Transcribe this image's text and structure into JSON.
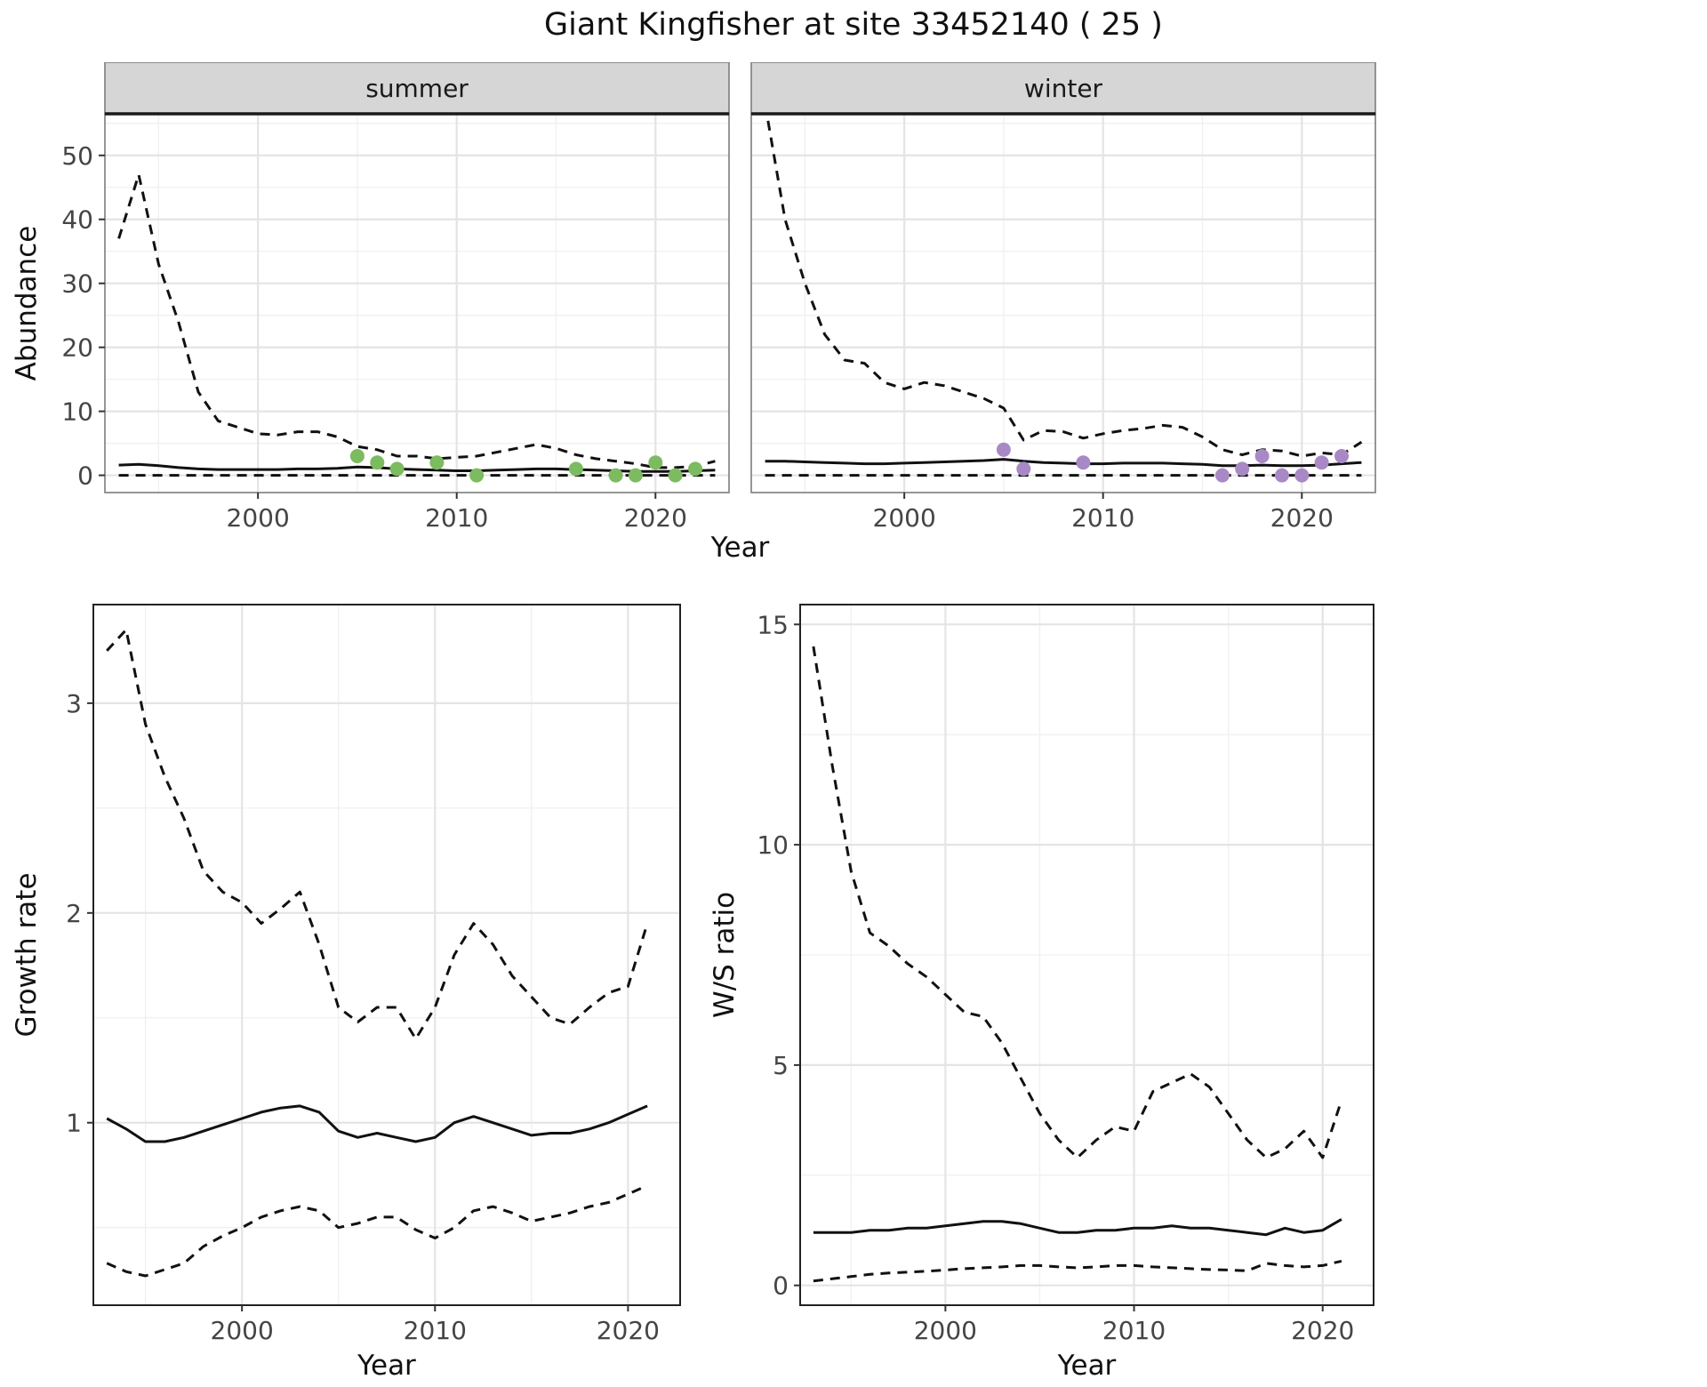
{
  "figure_title": "Giant Kingfisher at site 33452140 ( 25 )",
  "shared_x_axis_label": "Year",
  "colors": {
    "summer_points": "#7CBB5F",
    "winter_points": "#A989C5",
    "line": "#111111",
    "strip_background": "#d6d6d6"
  },
  "chart_data": [
    {
      "id": "abundance_summer",
      "type": "line",
      "facet_label": "summer",
      "ylabel": "Abundance",
      "xlabel": null,
      "xlim": [
        1992.3,
        2023.7
      ],
      "ylim": [
        -2.7,
        56.5
      ],
      "x_ticks": [
        2000,
        2010,
        2020
      ],
      "x_minor_ticks": [
        1995,
        2005,
        2015
      ],
      "y_ticks": [
        0,
        10,
        20,
        30,
        40,
        50
      ],
      "y_minor_ticks": [
        5,
        15,
        25,
        35,
        45,
        55
      ],
      "x": [
        1993,
        1994,
        1995,
        1996,
        1997,
        1998,
        1999,
        2000,
        2001,
        2002,
        2003,
        2004,
        2005,
        2006,
        2007,
        2008,
        2009,
        2010,
        2011,
        2012,
        2013,
        2014,
        2015,
        2016,
        2017,
        2018,
        2019,
        2020,
        2021,
        2022,
        2023
      ],
      "series": [
        {
          "name": "upper_ci",
          "style": "dashed",
          "values": [
            37,
            47,
            33,
            24,
            13,
            8.5,
            7.5,
            6.5,
            6.3,
            6.8,
            6.8,
            6,
            4.5,
            4,
            3,
            3,
            2.6,
            2.8,
            3,
            3.6,
            4.2,
            4.8,
            4.2,
            3.2,
            2.6,
            2.2,
            1.8,
            1.2,
            1.2,
            1.4,
            2.2
          ]
        },
        {
          "name": "median",
          "style": "solid",
          "values": [
            1.6,
            1.7,
            1.5,
            1.2,
            1,
            0.9,
            0.9,
            0.9,
            0.9,
            1,
            1,
            1.1,
            1.3,
            1.2,
            1,
            0.9,
            0.8,
            0.7,
            0.7,
            0.8,
            0.9,
            1,
            1,
            0.9,
            0.8,
            0.7,
            0.6,
            0.6,
            0.6,
            0.7,
            0.8
          ]
        },
        {
          "name": "lower_ci",
          "style": "dashed",
          "values": [
            0,
            0,
            0,
            0,
            0,
            0,
            0,
            0,
            0,
            0,
            0,
            0,
            0,
            0,
            0,
            0,
            0,
            0,
            0,
            0,
            0,
            0,
            0,
            0,
            0,
            0,
            0,
            0,
            0,
            0,
            0
          ]
        }
      ],
      "points": {
        "name": "observed_summer_counts",
        "color": "#7CBB5F",
        "x": [
          2005,
          2006,
          2007,
          2009,
          2011,
          2016,
          2018,
          2019,
          2020,
          2021,
          2022
        ],
        "y": [
          3,
          2,
          1,
          2,
          0,
          1,
          0,
          0,
          2,
          0,
          1
        ]
      }
    },
    {
      "id": "abundance_winter",
      "type": "line",
      "facet_label": "winter",
      "ylabel": null,
      "xlabel": null,
      "xlim": [
        1992.3,
        2023.7
      ],
      "ylim": [
        -2.7,
        56.5
      ],
      "x_ticks": [
        2000,
        2010,
        2020
      ],
      "x_minor_ticks": [
        1995,
        2005,
        2015
      ],
      "y_ticks": [
        0,
        10,
        20,
        30,
        40,
        50
      ],
      "y_minor_ticks": [
        5,
        15,
        25,
        35,
        45,
        55
      ],
      "x": [
        1993,
        1994,
        1995,
        1996,
        1997,
        1998,
        1999,
        2000,
        2001,
        2002,
        2003,
        2004,
        2005,
        2006,
        2007,
        2008,
        2009,
        2010,
        2011,
        2012,
        2013,
        2014,
        2015,
        2016,
        2017,
        2018,
        2019,
        2020,
        2021,
        2022,
        2023
      ],
      "series": [
        {
          "name": "upper_ci",
          "style": "dashed",
          "values": [
            58,
            40,
            30,
            22,
            18,
            17.5,
            14.5,
            13.5,
            14.5,
            14,
            13,
            12,
            10.5,
            5.5,
            7,
            6.8,
            5.8,
            6.5,
            7,
            7.3,
            7.8,
            7.5,
            6,
            4,
            3.2,
            4,
            3.8,
            3,
            3.5,
            3.2,
            5.2
          ]
        },
        {
          "name": "median",
          "style": "solid",
          "values": [
            2.2,
            2.2,
            2.1,
            2,
            1.9,
            1.8,
            1.8,
            1.9,
            2,
            2.1,
            2.2,
            2.3,
            2.5,
            2.2,
            2,
            1.9,
            1.8,
            1.8,
            1.9,
            1.9,
            1.9,
            1.8,
            1.7,
            1.5,
            1.5,
            1.6,
            1.5,
            1.5,
            1.6,
            1.8,
            2
          ]
        },
        {
          "name": "lower_ci",
          "style": "dashed",
          "values": [
            0,
            0,
            0,
            0,
            0,
            0,
            0,
            0,
            0,
            0,
            0,
            0,
            0,
            0,
            0,
            0,
            0,
            0,
            0,
            0,
            0,
            0,
            0,
            0,
            0,
            0,
            0,
            0,
            0,
            0,
            0
          ]
        }
      ],
      "points": {
        "name": "observed_winter_counts",
        "color": "#A989C5",
        "x": [
          2005,
          2006,
          2009,
          2016,
          2017,
          2018,
          2019,
          2020,
          2021,
          2022
        ],
        "y": [
          4,
          1,
          2,
          0,
          1,
          3,
          0,
          0,
          2,
          3
        ]
      }
    },
    {
      "id": "growth_rate",
      "type": "line",
      "facet_label": null,
      "ylabel": "Growth rate",
      "xlabel": "Year",
      "xlim": [
        1992.3,
        2022.7
      ],
      "ylim": [
        0.13,
        3.47
      ],
      "x_ticks": [
        2000,
        2010,
        2020
      ],
      "x_minor_ticks": [
        1995,
        2005,
        2015
      ],
      "y_ticks": [
        1,
        2,
        3
      ],
      "y_minor_ticks": [
        0.5,
        1.5,
        2.5
      ],
      "x": [
        1993,
        1994,
        1995,
        1996,
        1997,
        1998,
        1999,
        2000,
        2001,
        2002,
        2003,
        2004,
        2005,
        2006,
        2007,
        2008,
        2009,
        2010,
        2011,
        2012,
        2013,
        2014,
        2015,
        2016,
        2017,
        2018,
        2019,
        2020,
        2021
      ],
      "series": [
        {
          "name": "upper_ci",
          "style": "dashed",
          "values": [
            3.25,
            3.35,
            2.9,
            2.65,
            2.45,
            2.2,
            2.1,
            2.05,
            1.95,
            2.02,
            2.1,
            1.85,
            1.55,
            1.48,
            1.55,
            1.55,
            1.4,
            1.55,
            1.8,
            1.95,
            1.85,
            1.7,
            1.6,
            1.5,
            1.47,
            1.55,
            1.62,
            1.65,
            1.95
          ]
        },
        {
          "name": "median",
          "style": "solid",
          "values": [
            1.02,
            0.97,
            0.91,
            0.91,
            0.93,
            0.96,
            0.99,
            1.02,
            1.05,
            1.07,
            1.08,
            1.05,
            0.96,
            0.93,
            0.95,
            0.93,
            0.91,
            0.93,
            1,
            1.03,
            1,
            0.97,
            0.94,
            0.95,
            0.95,
            0.97,
            1,
            1.04,
            1.08
          ]
        },
        {
          "name": "lower_ci",
          "style": "dashed",
          "values": [
            0.33,
            0.29,
            0.27,
            0.3,
            0.33,
            0.41,
            0.46,
            0.5,
            0.55,
            0.58,
            0.6,
            0.58,
            0.5,
            0.52,
            0.55,
            0.55,
            0.49,
            0.45,
            0.5,
            0.58,
            0.6,
            0.57,
            0.53,
            0.55,
            0.57,
            0.6,
            0.62,
            0.66,
            0.7
          ]
        }
      ],
      "points": null
    },
    {
      "id": "ws_ratio",
      "type": "line",
      "facet_label": null,
      "ylabel": "W/S ratio",
      "xlabel": "Year",
      "xlim": [
        1992.3,
        2022.7
      ],
      "ylim": [
        -0.45,
        15.45
      ],
      "x_ticks": [
        2000,
        2010,
        2020
      ],
      "x_minor_ticks": [
        1995,
        2005,
        2015
      ],
      "y_ticks": [
        0,
        5,
        10,
        15
      ],
      "y_minor_ticks": [
        2.5,
        7.5,
        12.5
      ],
      "x": [
        1993,
        1994,
        1995,
        1996,
        1997,
        1998,
        1999,
        2000,
        2001,
        2002,
        2003,
        2004,
        2005,
        2006,
        2007,
        2008,
        2009,
        2010,
        2011,
        2012,
        2013,
        2014,
        2015,
        2016,
        2017,
        2018,
        2019,
        2020,
        2021
      ],
      "series": [
        {
          "name": "upper_ci",
          "style": "dashed",
          "values": [
            14.5,
            11.8,
            9.4,
            8,
            7.7,
            7.3,
            7,
            6.6,
            6.2,
            6.1,
            5.5,
            4.7,
            3.9,
            3.3,
            2.9,
            3.3,
            3.6,
            3.5,
            4.4,
            4.6,
            4.8,
            4.5,
            3.9,
            3.3,
            2.9,
            3.1,
            3.5,
            2.9,
            4.2
          ]
        },
        {
          "name": "median",
          "style": "solid",
          "values": [
            1.2,
            1.2,
            1.2,
            1.25,
            1.25,
            1.3,
            1.3,
            1.35,
            1.4,
            1.45,
            1.45,
            1.4,
            1.3,
            1.2,
            1.2,
            1.25,
            1.25,
            1.3,
            1.3,
            1.35,
            1.3,
            1.3,
            1.25,
            1.2,
            1.15,
            1.3,
            1.2,
            1.25,
            1.5
          ]
        },
        {
          "name": "lower_ci",
          "style": "dashed",
          "values": [
            0.1,
            0.15,
            0.2,
            0.25,
            0.28,
            0.3,
            0.32,
            0.35,
            0.38,
            0.4,
            0.42,
            0.45,
            0.45,
            0.42,
            0.4,
            0.42,
            0.45,
            0.45,
            0.42,
            0.4,
            0.38,
            0.36,
            0.35,
            0.33,
            0.5,
            0.45,
            0.42,
            0.45,
            0.55
          ]
        }
      ],
      "points": null
    }
  ]
}
